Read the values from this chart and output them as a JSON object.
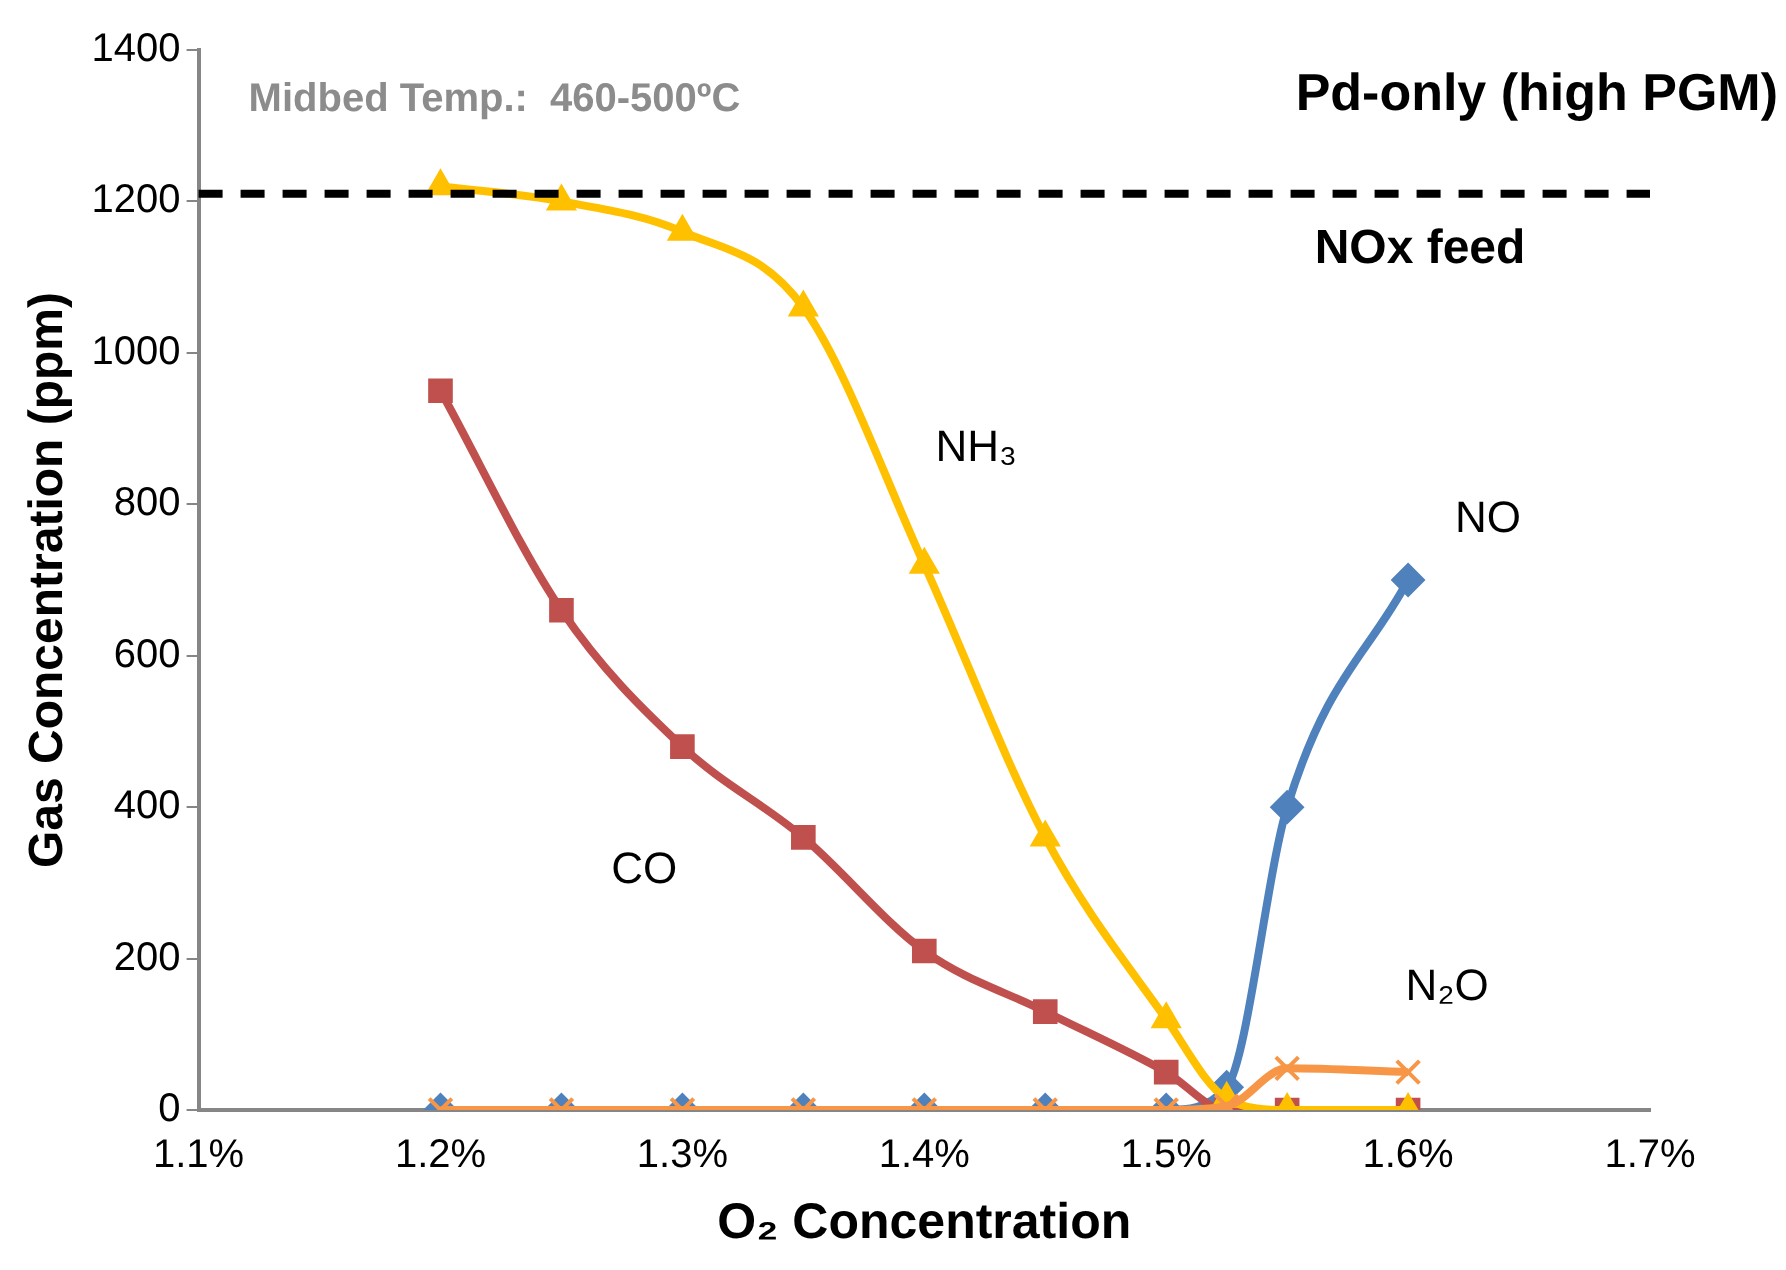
{
  "chart_data": {
    "type": "line",
    "title": "Pd-only (high PGM)",
    "xlabel": "O₂ Concentration",
    "ylabel": "Gas Concentration (ppm)",
    "x": [
      1.2,
      1.25,
      1.3,
      1.35,
      1.4,
      1.45,
      1.5,
      1.525,
      1.55,
      1.6
    ],
    "series": [
      {
        "name": "NO",
        "color": "#4f81bd",
        "marker": "diamond",
        "values": [
          0,
          0,
          0,
          0,
          0,
          0,
          0,
          30,
          400,
          700
        ]
      },
      {
        "name": "CO",
        "color": "#c0504d",
        "marker": "square",
        "values": [
          950,
          660,
          480,
          360,
          210,
          130,
          50,
          0,
          0,
          0
        ]
      },
      {
        "name": "NH₃",
        "color": "#ffc000",
        "marker": "triangle",
        "values": [
          1220,
          1200,
          1160,
          1060,
          720,
          360,
          120,
          15,
          0,
          0
        ]
      },
      {
        "name": "N₂O",
        "color": "#f79646",
        "marker": "cross",
        "values": [
          0,
          0,
          0,
          0,
          0,
          0,
          0,
          5,
          55,
          50
        ]
      }
    ],
    "xlim": [
      1.1,
      1.7
    ],
    "xticks": [
      {
        "value": 1.1,
        "label": "1.1%"
      },
      {
        "value": 1.2,
        "label": "1.2%"
      },
      {
        "value": 1.3,
        "label": "1.3%"
      },
      {
        "value": 1.4,
        "label": "1.4%"
      },
      {
        "value": 1.5,
        "label": "1.5%"
      },
      {
        "value": 1.6,
        "label": "1.6%"
      },
      {
        "value": 1.7,
        "label": "1.7%"
      }
    ],
    "ylim": [
      0,
      1400
    ],
    "yticks": [
      0,
      200,
      400,
      600,
      800,
      1000,
      1200,
      1400
    ],
    "ref_lines": [
      {
        "axis": "y",
        "value": 1210,
        "label": "NOx feed",
        "color": "#000000",
        "line_style": "dashed"
      }
    ],
    "annotations": [
      "Midbed Temp.:  460-500ºC"
    ],
    "grid": false,
    "legend": false,
    "line_style": "solid"
  }
}
